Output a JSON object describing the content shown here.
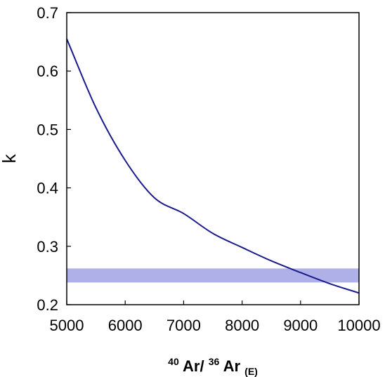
{
  "chart_data": {
    "type": "line",
    "title": "",
    "xlabel": {
      "prefix_sup": "40",
      "part1": "Ar/",
      "mid_sup": "36",
      "part2": "Ar",
      "sub": "(E)"
    },
    "ylabel": "k",
    "xlim": [
      5000,
      10000
    ],
    "ylim": [
      0.2,
      0.7
    ],
    "xticks": [
      5000,
      6000,
      7000,
      8000,
      9000,
      10000
    ],
    "xtick_labels": [
      "5000",
      "6000",
      "7000",
      "8000",
      "9000",
      "10000"
    ],
    "yticks": [
      0.2,
      0.3,
      0.4,
      0.5,
      0.6,
      0.7
    ],
    "ytick_labels": [
      "0.2",
      "0.3",
      "0.4",
      "0.5",
      "0.6",
      "0.7"
    ],
    "grid": false,
    "band": {
      "y_min": 0.238,
      "y_max": 0.262,
      "color": "#b0b0e8"
    },
    "series": [
      {
        "color": "#1a1a8c",
        "x": [
          5000,
          5500,
          6000,
          6500,
          7000,
          7500,
          8000,
          8500,
          9000,
          9500,
          10000
        ],
        "y": [
          0.655,
          0.537,
          0.447,
          0.383,
          0.356,
          0.322,
          0.298,
          0.275,
          0.255,
          0.236,
          0.22
        ]
      }
    ]
  }
}
